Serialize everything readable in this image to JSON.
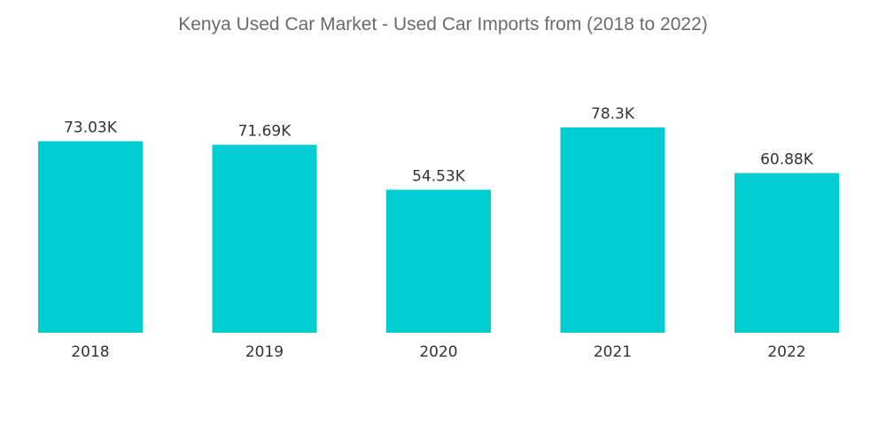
{
  "chart_data": {
    "type": "bar",
    "title": "Kenya Used Car Market - Used Car Imports from (2018 to 2022)",
    "categories": [
      "2018",
      "2019",
      "2020",
      "2021",
      "2022"
    ],
    "values": [
      73.03,
      71.69,
      54.53,
      78.3,
      60.88
    ],
    "data_labels": [
      "73.03K",
      "71.69K",
      "54.53K",
      "78.3K",
      "60.88K"
    ],
    "xlabel": "",
    "ylabel": "",
    "ylim": [
      0,
      80
    ],
    "grid": false,
    "legend": "none",
    "bar_color": "#00cdd1"
  }
}
